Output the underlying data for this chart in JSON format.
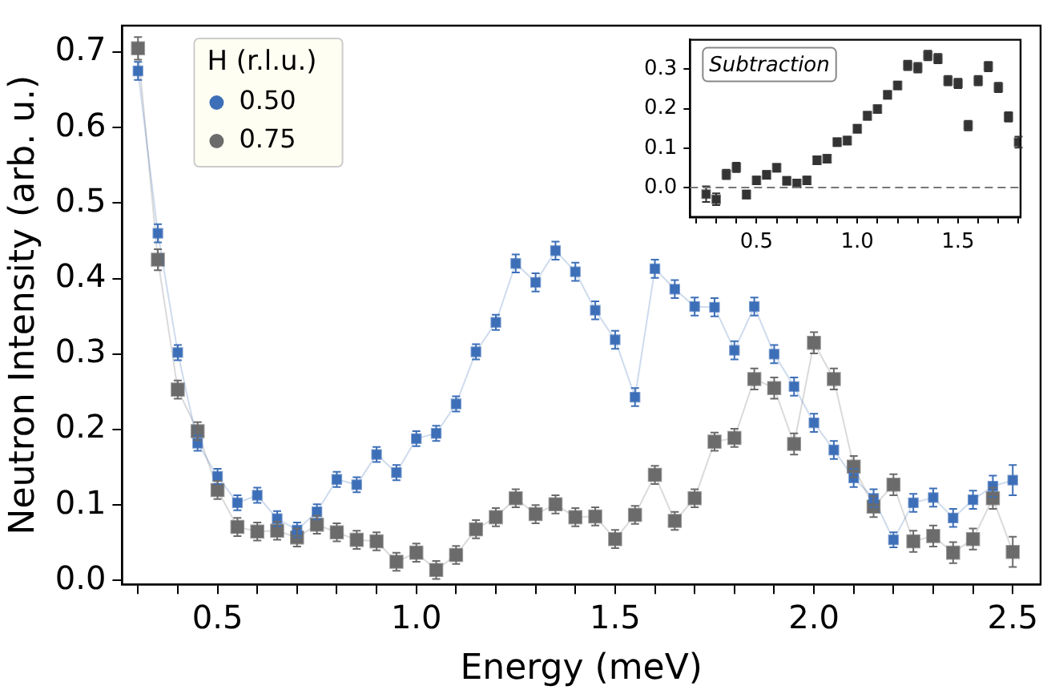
{
  "chart_data": [
    {
      "type": "line",
      "xlabel": "Energy (meV)",
      "ylabel": "Neutron Intensity (arb. u.)",
      "legend_title": "H (r.l.u.)",
      "legend": "top left",
      "marker": "square",
      "grid": false,
      "x": [
        0.3,
        0.35,
        0.4,
        0.45,
        0.5,
        0.55,
        0.6,
        0.65,
        0.7,
        0.75,
        0.8,
        0.85,
        0.9,
        0.95,
        1.0,
        1.05,
        1.1,
        1.15,
        1.2,
        1.25,
        1.3,
        1.35,
        1.4,
        1.45,
        1.5,
        1.55,
        1.6,
        1.65,
        1.7,
        1.75,
        1.8,
        1.85,
        1.9,
        1.95,
        2.0,
        2.05,
        2.1,
        2.15,
        2.2,
        2.25,
        2.3,
        2.35,
        2.4,
        2.45,
        2.5
      ],
      "series": [
        {
          "name": "0.50",
          "color": "#3d6fb8",
          "values": [
            0.675,
            0.46,
            0.302,
            0.182,
            0.138,
            0.103,
            0.113,
            0.082,
            0.067,
            0.091,
            0.134,
            0.127,
            0.167,
            0.143,
            0.188,
            0.195,
            0.234,
            0.303,
            0.342,
            0.42,
            0.395,
            0.437,
            0.409,
            0.358,
            0.319,
            0.243,
            0.413,
            0.386,
            0.363,
            0.362,
            0.305,
            0.363,
            0.3,
            0.257,
            0.209,
            0.173,
            0.136,
            0.109,
            0.054,
            0.103,
            0.11,
            0.083,
            0.107,
            0.125,
            0.133
          ],
          "errors": [
            0.012,
            0.012,
            0.01,
            0.01,
            0.01,
            0.01,
            0.01,
            0.01,
            0.01,
            0.01,
            0.01,
            0.01,
            0.01,
            0.01,
            0.01,
            0.01,
            0.01,
            0.01,
            0.01,
            0.012,
            0.012,
            0.012,
            0.012,
            0.012,
            0.012,
            0.012,
            0.012,
            0.012,
            0.012,
            0.012,
            0.012,
            0.012,
            0.012,
            0.012,
            0.012,
            0.012,
            0.012,
            0.012,
            0.01,
            0.012,
            0.012,
            0.012,
            0.012,
            0.014,
            0.02
          ]
        },
        {
          "name": "0.75",
          "color": "#6b6b6b",
          "values": [
            0.705,
            0.425,
            0.253,
            0.198,
            0.12,
            0.071,
            0.065,
            0.066,
            0.057,
            0.074,
            0.064,
            0.054,
            0.052,
            0.025,
            0.037,
            0.014,
            0.034,
            0.068,
            0.084,
            0.109,
            0.088,
            0.101,
            0.084,
            0.085,
            0.055,
            0.087,
            0.14,
            0.079,
            0.109,
            0.184,
            0.189,
            0.267,
            0.255,
            0.181,
            0.315,
            0.267,
            0.151,
            0.098,
            0.127,
            0.052,
            0.059,
            0.037,
            0.055,
            0.109,
            0.038
          ],
          "errors": [
            0.015,
            0.014,
            0.012,
            0.012,
            0.012,
            0.012,
            0.012,
            0.012,
            0.012,
            0.012,
            0.012,
            0.012,
            0.012,
            0.012,
            0.012,
            0.012,
            0.012,
            0.012,
            0.012,
            0.012,
            0.012,
            0.012,
            0.012,
            0.012,
            0.012,
            0.012,
            0.012,
            0.012,
            0.012,
            0.012,
            0.012,
            0.014,
            0.014,
            0.014,
            0.014,
            0.014,
            0.014,
            0.014,
            0.014,
            0.014,
            0.014,
            0.014,
            0.014,
            0.014,
            0.02
          ]
        }
      ],
      "xlim": [
        0.26,
        2.57
      ],
      "ylim": [
        -0.005,
        0.735
      ],
      "xticks": [
        {
          "value": 0.3,
          "label": null
        },
        {
          "value": 0.4,
          "label": null
        },
        0.5,
        {
          "value": 0.6,
          "label": null
        },
        {
          "value": 0.7,
          "label": null
        },
        {
          "value": 0.8,
          "label": null
        },
        {
          "value": 0.9,
          "label": null
        },
        {
          "value": 1,
          "label": "1.0"
        },
        {
          "value": 1.1,
          "label": null
        },
        {
          "value": 1.2,
          "label": null
        },
        {
          "value": 1.3,
          "label": null
        },
        {
          "value": 1.4,
          "label": null
        },
        1.5,
        {
          "value": 1.6,
          "label": null
        },
        {
          "value": 1.7,
          "label": null
        },
        {
          "value": 1.8,
          "label": null
        },
        {
          "value": 1.9,
          "label": null
        },
        {
          "value": 2,
          "label": "2.0"
        },
        {
          "value": 2.1,
          "label": null
        },
        {
          "value": 2.2,
          "label": null
        },
        {
          "value": 2.3,
          "label": null
        },
        {
          "value": 2.4,
          "label": null
        },
        2.5
      ],
      "yticks": [
        {
          "value": 0,
          "label": "0.0"
        },
        0.1,
        0.2,
        0.3,
        0.4,
        0.5,
        0.6,
        0.7
      ]
    },
    {
      "type": "scatter",
      "marker": "square",
      "grid": false,
      "annotations": [
        "Subtraction"
      ],
      "x": [
        0.25,
        0.3,
        0.35,
        0.4,
        0.45,
        0.5,
        0.55,
        0.6,
        0.65,
        0.7,
        0.75,
        0.8,
        0.85,
        0.9,
        0.95,
        1.0,
        1.05,
        1.1,
        1.15,
        1.2,
        1.25,
        1.3,
        1.35,
        1.4,
        1.45,
        1.5,
        1.55,
        1.6,
        1.65,
        1.7,
        1.75,
        1.8
      ],
      "series": [
        {
          "color": "#333333",
          "values": [
            -0.017,
            -0.03,
            0.033,
            0.051,
            -0.018,
            0.018,
            0.032,
            0.05,
            0.017,
            0.01,
            0.018,
            0.069,
            0.073,
            0.115,
            0.119,
            0.149,
            0.182,
            0.199,
            0.235,
            0.259,
            0.31,
            0.304,
            0.335,
            0.327,
            0.271,
            0.264,
            0.157,
            0.271,
            0.307,
            0.254,
            0.179,
            0.115
          ],
          "errors": [
            0.02,
            0.015,
            0.012,
            0.012,
            0.01,
            0.01,
            0.01,
            0.01,
            0.01,
            0.01,
            0.01,
            0.01,
            0.01,
            0.01,
            0.01,
            0.01,
            0.01,
            0.01,
            0.01,
            0.01,
            0.012,
            0.012,
            0.012,
            0.012,
            0.012,
            0.012,
            0.012,
            0.012,
            0.012,
            0.012,
            0.012,
            0.014
          ]
        }
      ],
      "ref_lines": [
        {
          "axis": "y",
          "value": 0,
          "color": "#777777",
          "line_style": "dashed"
        }
      ],
      "xlim": [
        0.17,
        1.81
      ],
      "ylim": [
        -0.075,
        0.375
      ],
      "xticks": [
        {
          "value": 0.2,
          "label": null
        },
        {
          "value": 0.3,
          "label": null
        },
        {
          "value": 0.4,
          "label": null
        },
        0.5,
        {
          "value": 0.6,
          "label": null
        },
        {
          "value": 0.7,
          "label": null
        },
        {
          "value": 0.8,
          "label": null
        },
        {
          "value": 0.9,
          "label": null
        },
        {
          "value": 1,
          "label": "1.0"
        },
        {
          "value": 1.1,
          "label": null
        },
        {
          "value": 1.2,
          "label": null
        },
        {
          "value": 1.3,
          "label": null
        },
        {
          "value": 1.4,
          "label": null
        },
        1.5,
        {
          "value": 1.6,
          "label": null
        },
        {
          "value": 1.7,
          "label": null
        },
        {
          "value": 1.8,
          "label": null
        }
      ],
      "yticks": [
        {
          "value": 0,
          "label": "0.0"
        },
        0.1,
        0.2,
        0.3
      ]
    }
  ]
}
